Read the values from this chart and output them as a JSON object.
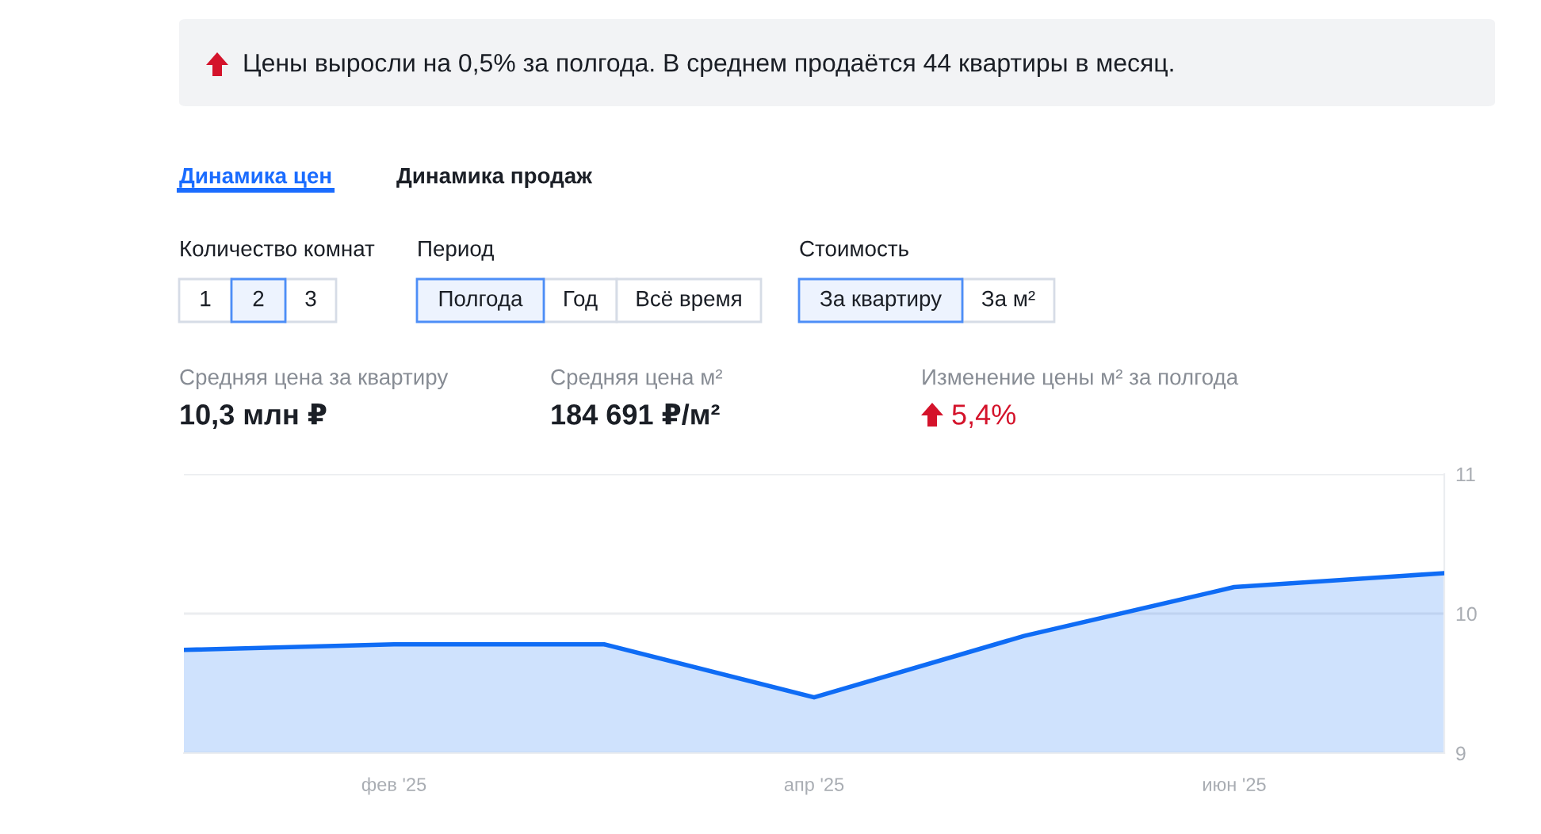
{
  "chart_data": {
    "type": "area",
    "title": "Цены выросли на 0,5% за полгода. В среднем продаётся 44 квартиры в месяц.",
    "categories": [
      null,
      "фев '25",
      null,
      "апр '25",
      null,
      "июн '25",
      null
    ],
    "series": [
      {
        "color": "#0f6cf5",
        "values": [
          9.74,
          9.78,
          9.78,
          9.4,
          9.84,
          10.19,
          10.29
        ]
      }
    ],
    "ylim": [
      9,
      11
    ],
    "yticks": [
      9,
      10,
      11
    ],
    "grid": "y",
    "annotations": [
      "Динамика цен",
      "Динамика продаж",
      "Количество комнат",
      "1",
      "2",
      "3",
      "Период",
      "Полгода",
      "Год",
      "Всё время",
      "Стоимость",
      "За квартиру",
      "За м²",
      "Средняя цена за квартиру",
      "10,3 млн ₽",
      "Средняя цена м²",
      "184 691 ₽/м²",
      "Изменение цены м² за полгода",
      "5,4%"
    ]
  }
}
